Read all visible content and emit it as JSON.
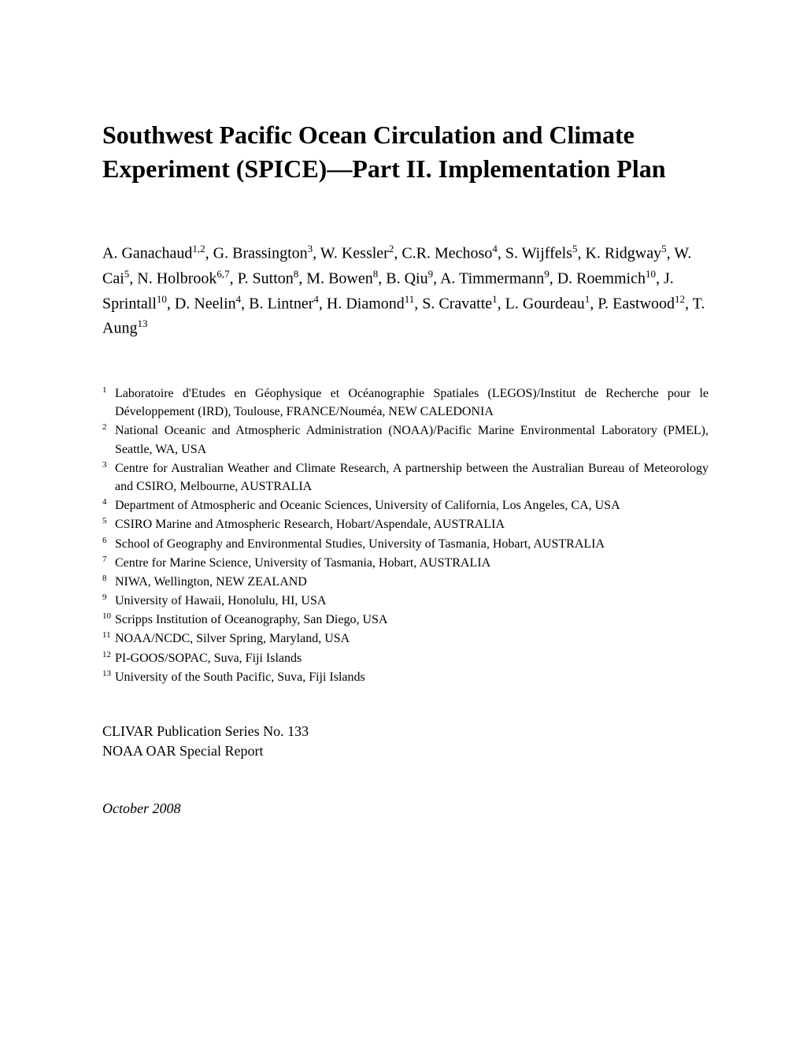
{
  "title": "Southwest Pacific Ocean Circulation and Climate Experiment (SPICE)—Part II. Implementation Plan",
  "authors_html": "A. Ganachaud<sup>1,2</sup>, G. Brassington<sup>3</sup>, W. Kessler<sup>2</sup>, C.R. Mechoso<sup>4</sup>, S. Wijffels<sup>5</sup>, K. Ridgway<sup>5</sup>, W. Cai<sup>5</sup>, N. Holbrook<sup>6,7</sup>, P. Sutton<sup>8</sup>, M. Bowen<sup>8</sup>, B. Qiu<sup>9</sup>, A. Timmermann<sup>9</sup>, D. Roemmich<sup>10</sup>, J. Sprintall<sup>10</sup>, D. Neelin<sup>4</sup>, B. Lintner<sup>4</sup>, H. Diamond<sup>11</sup>, S. Cravatte<sup>1</sup>, L. Gourdeau<sup>1</sup>, P. Eastwood<sup>12</sup>, T. Aung<sup>13</sup>",
  "affiliations": [
    {
      "num": "1",
      "text": "Laboratoire d'Etudes en Géophysique et Océanographie Spatiales (LEGOS)/Institut de Recherche pour le Développement (IRD), Toulouse, FRANCE/Nouméa, NEW CALEDONIA"
    },
    {
      "num": "2",
      "text": "National Oceanic and Atmospheric Administration (NOAA)/Pacific Marine Environmental Laboratory (PMEL), Seattle, WA, USA"
    },
    {
      "num": "3",
      "text": "Centre for Australian Weather and Climate Research, A partnership between the Australian Bureau of Meteorology and CSIRO, Melbourne, AUSTRALIA"
    },
    {
      "num": "4",
      "text": "Department of Atmospheric and Oceanic Sciences, University of California, Los Angeles, CA, USA"
    },
    {
      "num": "5",
      "text": "CSIRO Marine and Atmospheric Research, Hobart/Aspendale, AUSTRALIA"
    },
    {
      "num": "6",
      "text": "School of Geography and Environmental Studies, University of Tasmania, Hobart, AUSTRALIA"
    },
    {
      "num": "7",
      "text": "Centre for Marine Science, University of Tasmania, Hobart, AUSTRALIA"
    },
    {
      "num": "8",
      "text": "NIWA, Wellington, NEW ZEALAND"
    },
    {
      "num": "9",
      "text": "University of Hawaii, Honolulu, HI, USA"
    },
    {
      "num": "10",
      "text": "Scripps Institution of Oceanography, San Diego, USA"
    },
    {
      "num": "11",
      "text": "NOAA/NCDC, Silver Spring, Maryland, USA"
    },
    {
      "num": "12",
      "text": "PI-GOOS/SOPAC, Suva, Fiji Islands"
    },
    {
      "num": "13",
      "text": "University of the South Pacific, Suva, Fiji Islands"
    }
  ],
  "pub_line1": "CLIVAR Publication Series No. 133",
  "pub_line2": "NOAA OAR Special Report",
  "date": "October 2008"
}
